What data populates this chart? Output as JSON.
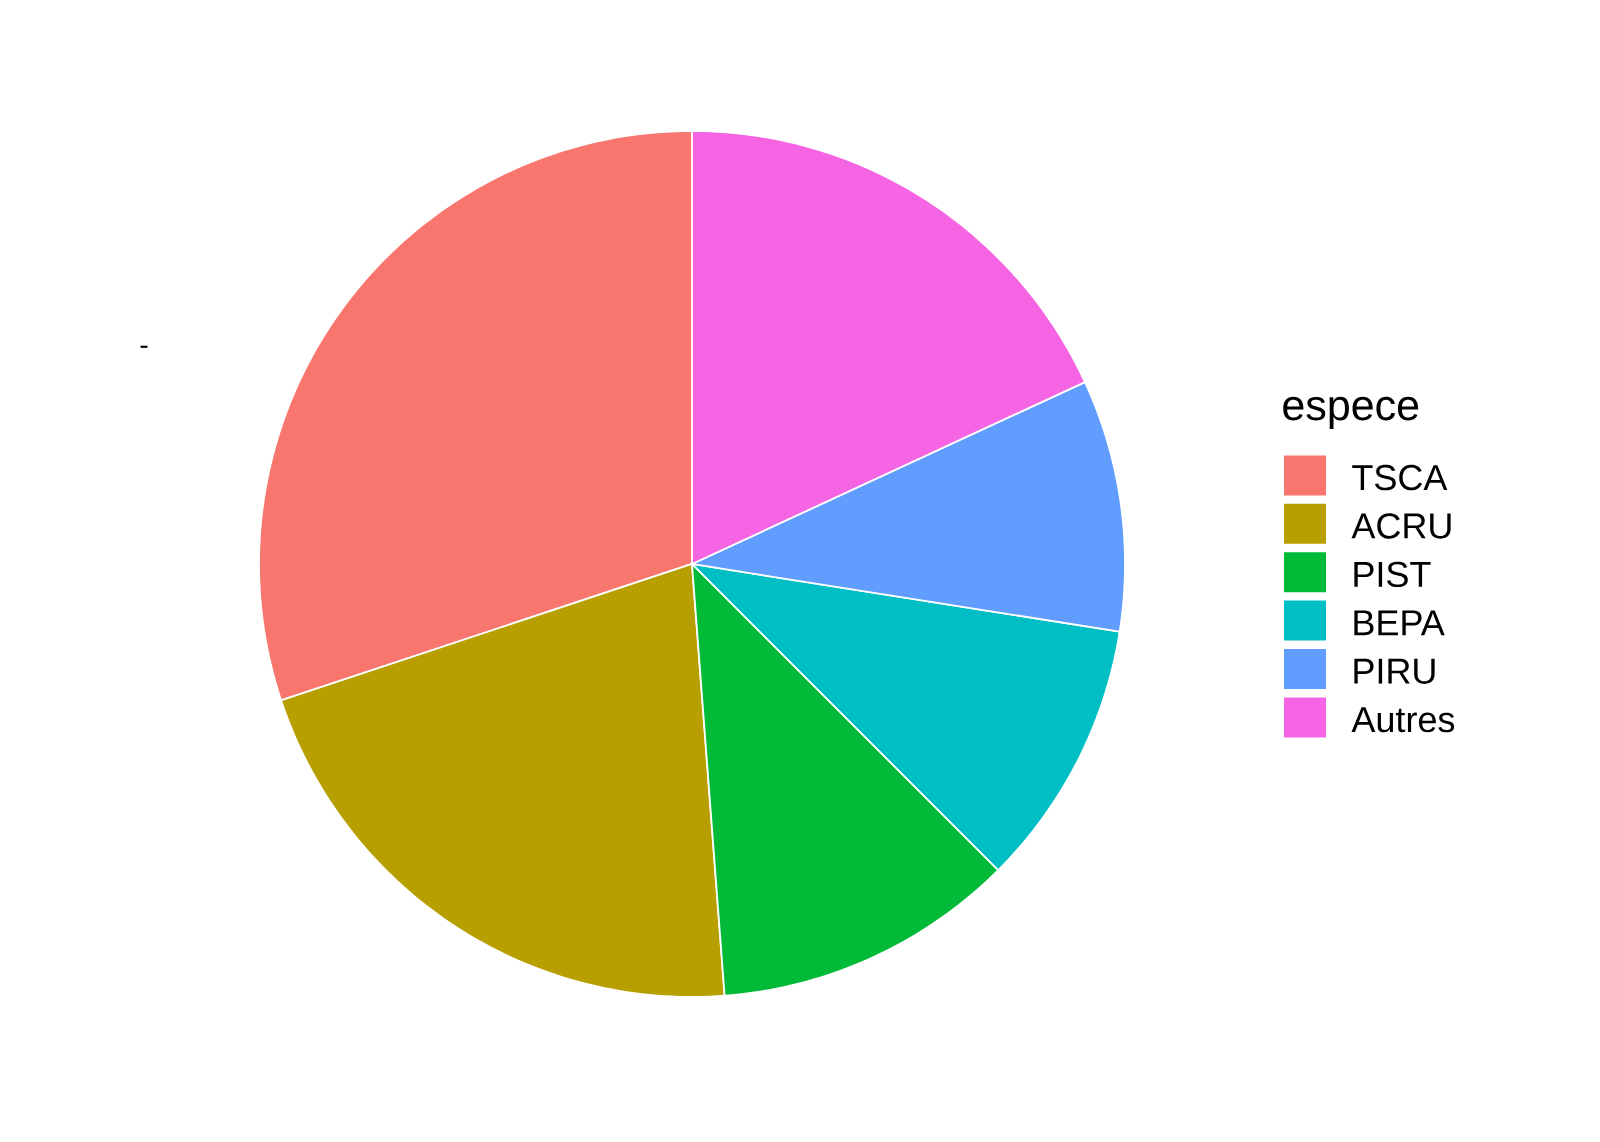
{
  "chart_data": {
    "type": "pie",
    "categories": [
      "TSCA",
      "ACRU",
      "PIST",
      "BEPA",
      "PIRU",
      "Autres"
    ],
    "values": [
      30.1,
      21.1,
      11.3,
      10.0,
      9.4,
      18.1
    ],
    "colors": [
      "#f8766d",
      "#b79f00",
      "#00ba38",
      "#00bfc4",
      "#619cff",
      "#f564e3"
    ],
    "legend_title": "espece",
    "legend": "right",
    "annotations": [
      "-"
    ]
  }
}
